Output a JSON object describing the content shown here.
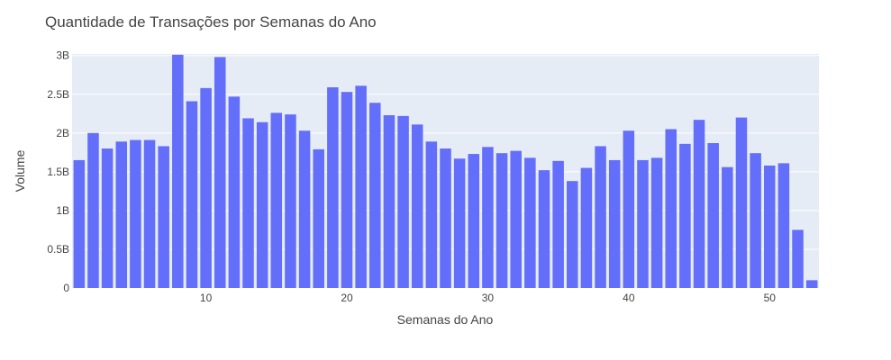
{
  "chart_data": {
    "type": "bar",
    "title": "Quantidade de Transações por Semanas do Ano",
    "xlabel": "Semanas do Ano",
    "ylabel": "Volume",
    "x": [
      1,
      2,
      3,
      4,
      5,
      6,
      7,
      8,
      9,
      10,
      11,
      12,
      13,
      14,
      15,
      16,
      17,
      18,
      19,
      20,
      21,
      22,
      23,
      24,
      25,
      26,
      27,
      28,
      29,
      30,
      31,
      32,
      33,
      34,
      35,
      36,
      37,
      38,
      39,
      40,
      41,
      42,
      43,
      44,
      45,
      46,
      47,
      48,
      49,
      50,
      51,
      52,
      53
    ],
    "values": [
      1.65,
      2.0,
      1.8,
      1.89,
      1.91,
      1.91,
      1.83,
      3.01,
      2.41,
      2.58,
      2.98,
      2.47,
      2.19,
      2.14,
      2.26,
      2.24,
      2.03,
      1.79,
      2.59,
      2.53,
      2.61,
      2.39,
      2.23,
      2.22,
      2.11,
      1.89,
      1.8,
      1.67,
      1.73,
      1.82,
      1.74,
      1.77,
      1.68,
      1.52,
      1.64,
      1.38,
      1.55,
      1.83,
      1.65,
      2.03,
      1.65,
      1.68,
      2.05,
      1.86,
      2.17,
      1.87,
      1.56,
      2.2,
      1.74,
      1.58,
      1.61,
      0.75,
      0.1
    ],
    "value_unit": "billions",
    "xlim": [
      0.5,
      53.5
    ],
    "ylim": [
      0,
      3.02
    ],
    "x_ticks": [
      10,
      20,
      30,
      40,
      50
    ],
    "x_tick_labels": [
      "10",
      "20",
      "30",
      "40",
      "50"
    ],
    "y_ticks": [
      0,
      0.5,
      1,
      1.5,
      2,
      2.5,
      3
    ],
    "y_tick_labels": [
      "0",
      "0.5B",
      "1B",
      "1.5B",
      "2B",
      "2.5B",
      "3B"
    ],
    "grid": true,
    "colors": {
      "bar": "#636efa",
      "plot_background": "#e5ecf6",
      "gridline": "#ffffff",
      "text": "#444444"
    }
  }
}
